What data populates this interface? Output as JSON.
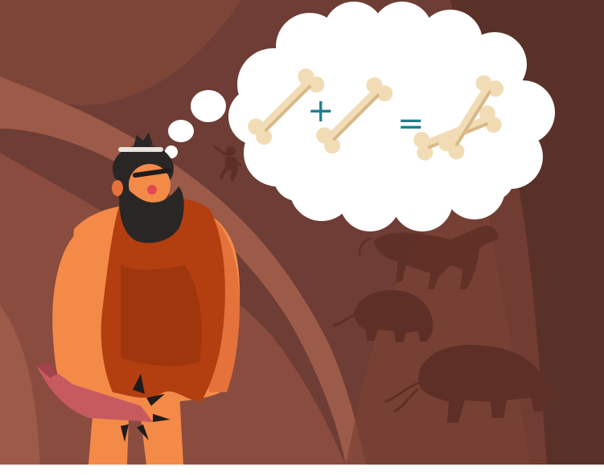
{
  "illustration": {
    "thought": {
      "operator_plus": "+",
      "operator_equals": "="
    },
    "colors": {
      "cave_dark": "#6e3d35",
      "cave_mid": "#8a4c3f",
      "cave_light": "#9c5a48",
      "cave_shadow": "#5a3128",
      "bubble": "#ffffff",
      "bone": "#f1dcb5",
      "bone_shadow": "#d8b888",
      "operator": "#1f7f8c",
      "skin": "#f48a48",
      "skin_shadow": "#e5723a",
      "fur": "#b33e10",
      "fur_dark": "#8c2d0a",
      "beard": "#2a2626",
      "club": "#c75a5f",
      "spike": "#1f1b1b",
      "cave_painting": "#5e2f26"
    },
    "icons": {
      "bone": "bone-icon",
      "crossed_bones": "crossed-bones-icon"
    }
  }
}
